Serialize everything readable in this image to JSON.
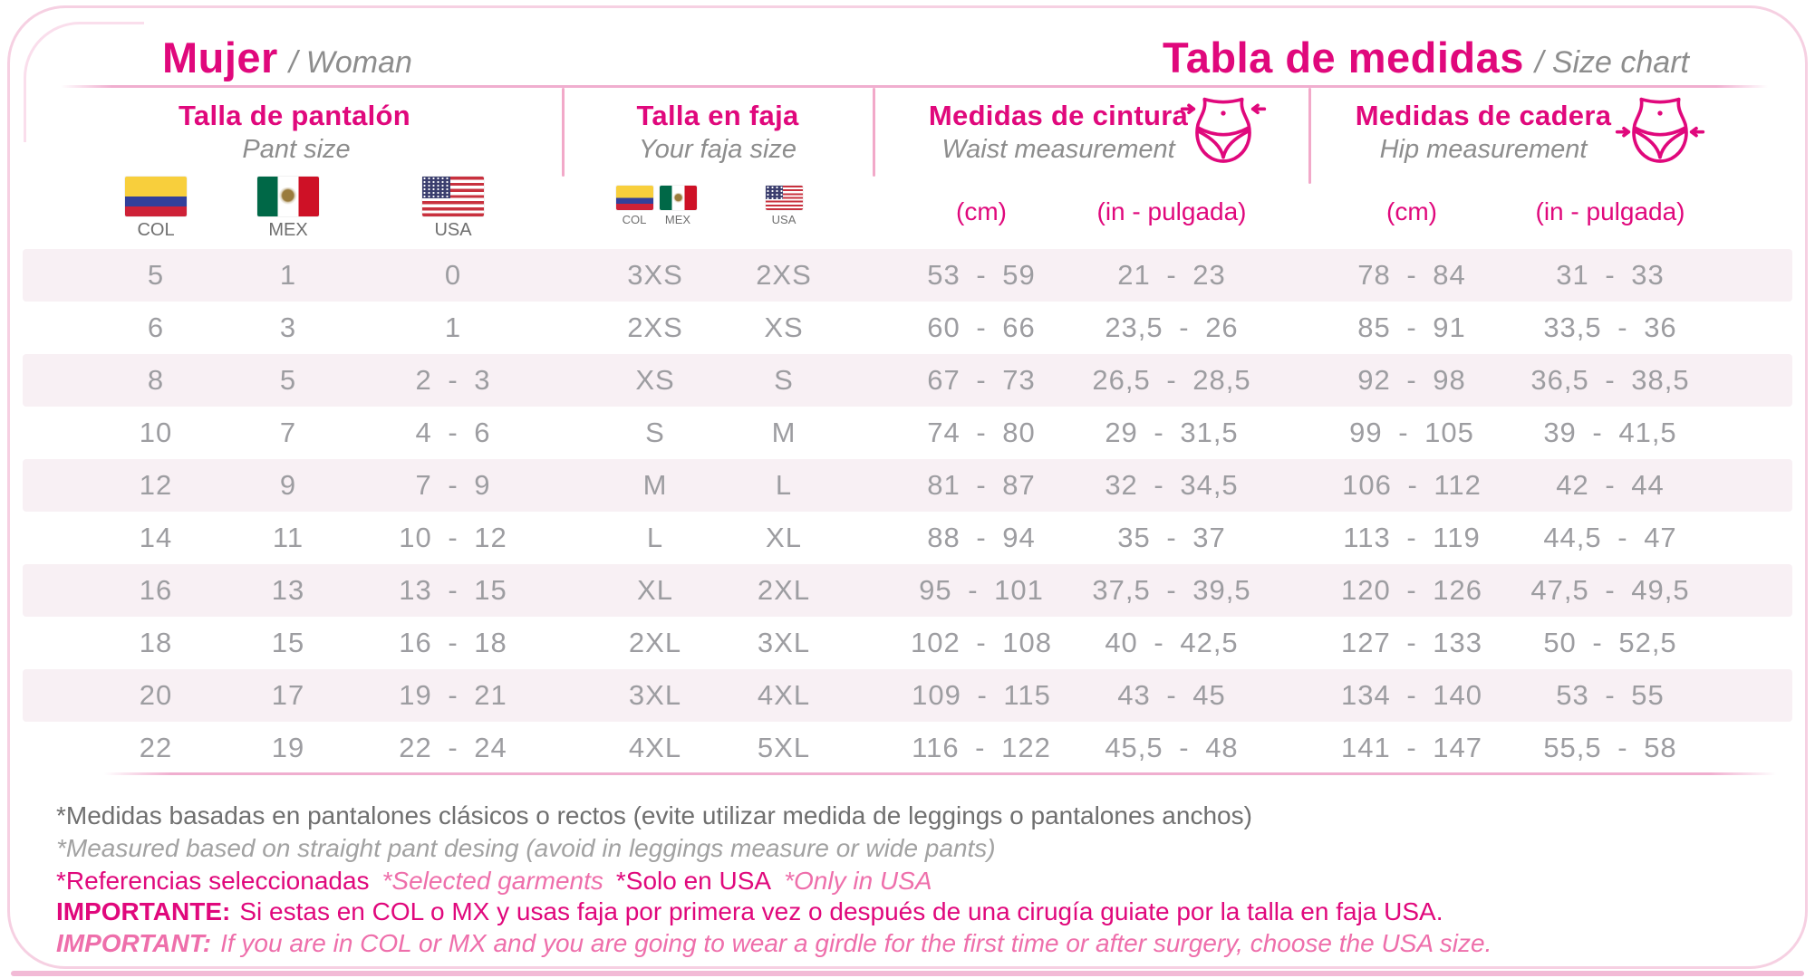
{
  "header": {
    "left_title": "Mujer",
    "left_subtitle": "/ Woman",
    "right_title": "Tabla de medidas",
    "right_subtitle": "/ Size chart"
  },
  "sections": {
    "pant": {
      "title": "Talla de pantalón",
      "subtitle": "Pant size",
      "flags": [
        "COL",
        "MEX",
        "USA"
      ]
    },
    "faja": {
      "title": "Talla en faja",
      "subtitle": "Your faja size",
      "flags": [
        "COL",
        "MEX",
        "USA"
      ]
    },
    "waist": {
      "title": "Medidas de cintura",
      "subtitle": "Waist measurement",
      "unit_cm": "(cm)",
      "unit_in": "(in - pulgada)"
    },
    "hip": {
      "title": "Medidas de cadera",
      "subtitle": "Hip measurement",
      "unit_cm": "(cm)",
      "unit_in": "(in - pulgada)"
    }
  },
  "chart_data": {
    "type": "table",
    "title": "Tabla de medidas / Size chart (Mujer / Woman)",
    "columns": [
      "pant_col",
      "pant_mex",
      "pant_usa",
      "faja_col_mex",
      "faja_usa",
      "waist_cm",
      "waist_in",
      "hip_cm",
      "hip_in"
    ],
    "column_labels": [
      "Pant size COL",
      "Pant size MEX",
      "Pant size USA",
      "Faja size COL/MEX",
      "Faja size USA",
      "Waist (cm)",
      "Waist (in - pulgada)",
      "Hip (cm)",
      "Hip (in - pulgada)"
    ],
    "rows": [
      {
        "pant_col": "5",
        "pant_mex": "1",
        "pant_usa": "0",
        "faja_col_mex": "3XS",
        "faja_usa": "2XS",
        "waist_cm": "53 - 59",
        "waist_in": "21 - 23",
        "hip_cm": "78 - 84",
        "hip_in": "31 - 33"
      },
      {
        "pant_col": "6",
        "pant_mex": "3",
        "pant_usa": "1",
        "faja_col_mex": "2XS",
        "faja_usa": "XS",
        "waist_cm": "60 - 66",
        "waist_in": "23,5 - 26",
        "hip_cm": "85 - 91",
        "hip_in": "33,5 - 36"
      },
      {
        "pant_col": "8",
        "pant_mex": "5",
        "pant_usa": "2 - 3",
        "faja_col_mex": "XS",
        "faja_usa": "S",
        "waist_cm": "67 - 73",
        "waist_in": "26,5 - 28,5",
        "hip_cm": "92 - 98",
        "hip_in": "36,5 - 38,5"
      },
      {
        "pant_col": "10",
        "pant_mex": "7",
        "pant_usa": "4 - 6",
        "faja_col_mex": "S",
        "faja_usa": "M",
        "waist_cm": "74 - 80",
        "waist_in": "29 - 31,5",
        "hip_cm": "99 - 105",
        "hip_in": "39 - 41,5"
      },
      {
        "pant_col": "12",
        "pant_mex": "9",
        "pant_usa": "7 - 9",
        "faja_col_mex": "M",
        "faja_usa": "L",
        "waist_cm": "81 - 87",
        "waist_in": "32 - 34,5",
        "hip_cm": "106 - 112",
        "hip_in": "42 - 44"
      },
      {
        "pant_col": "14",
        "pant_mex": "11",
        "pant_usa": "10 - 12",
        "faja_col_mex": "L",
        "faja_usa": "XL",
        "waist_cm": "88 - 94",
        "waist_in": "35 - 37",
        "hip_cm": "113 - 119",
        "hip_in": "44,5 - 47"
      },
      {
        "pant_col": "16",
        "pant_mex": "13",
        "pant_usa": "13 - 15",
        "faja_col_mex": "XL",
        "faja_usa": "2XL",
        "waist_cm": "95 - 101",
        "waist_in": "37,5 - 39,5",
        "hip_cm": "120 - 126",
        "hip_in": "47,5 - 49,5"
      },
      {
        "pant_col": "18",
        "pant_mex": "15",
        "pant_usa": "16 - 18",
        "faja_col_mex": "2XL",
        "faja_usa": "3XL",
        "waist_cm": "102 - 108",
        "waist_in": "40 - 42,5",
        "hip_cm": "127 - 133",
        "hip_in": "50 - 52,5"
      },
      {
        "pant_col": "20",
        "pant_mex": "17",
        "pant_usa": "19 - 21",
        "faja_col_mex": "3XL",
        "faja_usa": "4XL",
        "waist_cm": "109 - 115",
        "waist_in": "43 - 45",
        "hip_cm": "134 - 140",
        "hip_in": "53 - 55"
      },
      {
        "pant_col": "22",
        "pant_mex": "19",
        "pant_usa": "22 - 24",
        "faja_col_mex": "4XL",
        "faja_usa": "5XL",
        "waist_cm": "116 - 122",
        "waist_in": "45,5 - 48",
        "hip_cm": "141 - 147",
        "hip_in": "55,5 - 58"
      }
    ]
  },
  "footnotes": {
    "note_es": "*Medidas basadas en pantalones clásicos o rectos (evite utilizar medida de leggings o pantalones anchos)",
    "note_en": "*Measured based on straight pant desing (avoid in leggings measure or wide pants)",
    "ref_es": "*Referencias seleccionadas",
    "ref_en": "*Selected garments",
    "usa_es": "*Solo en USA",
    "usa_en": "*Only in USA",
    "important_es_label": "IMPORTANTE:",
    "important_es_text": "Si estas en COL o MX y usas faja por primera vez o después de una cirugía guiate por la talla en faja USA.",
    "important_en_label": "IMPORTANT:",
    "important_en_text": "If you are in COL or MX and you are going to wear a girdle for the first time or after surgery, choose the USA size."
  },
  "colors": {
    "magenta": "#E0087C",
    "pink_italic": "#EE6FAB",
    "divider_pink": "#F2A9C9",
    "stripe_pink": "#F8F0F4",
    "subtitle_gray": "#8D8D8D",
    "data_gray": "#9D9DA1"
  }
}
